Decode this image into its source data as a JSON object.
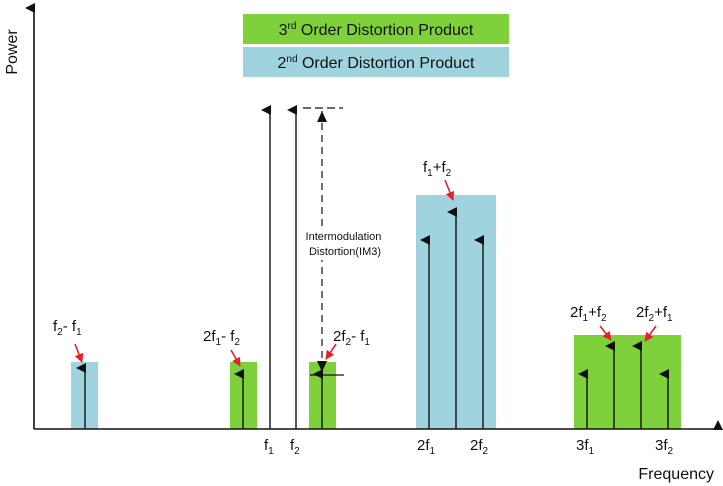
{
  "axes": {
    "y_label": "Power",
    "x_label": "Frequency"
  },
  "legend": {
    "third_order": {
      "base": "3",
      "sup": "rd",
      "text": " Order Distortion Product",
      "color": "#7ed13a"
    },
    "second_order": {
      "base": "2",
      "sup": "nd",
      "text": " Order Distortion Product",
      "color": "#9fd4df"
    }
  },
  "colors": {
    "second_order": "#9fd4df",
    "third_order": "#7ed13a",
    "arrow": "#111111",
    "pointer": "#e8202a"
  },
  "annotation": {
    "line1": "Intermodulation",
    "line2": "Distortion(IM3)"
  },
  "x_ticks": [
    {
      "base": "f",
      "sub": "1"
    },
    {
      "base": "f",
      "sub": "2"
    },
    {
      "base": "2f",
      "sub": "1"
    },
    {
      "base": "2f",
      "sub": "2"
    },
    {
      "base": "3f",
      "sub": "1"
    },
    {
      "base": "3f",
      "sub": "2"
    }
  ],
  "product_labels": {
    "diff_f2_f1": {
      "p1": "f",
      "s1": "2",
      "op": "- ",
      "p2": "f",
      "s2": "1"
    },
    "two_f1_minus_f2": {
      "p1": "2f",
      "s1": "1",
      "op": "- ",
      "p2": "f",
      "s2": "2"
    },
    "two_f2_minus_f1": {
      "p1": "2f",
      "s1": "2",
      "op": "- ",
      "p2": "f",
      "s2": "1"
    },
    "sum_f1_f2": {
      "p1": "f",
      "s1": "1",
      "op": "+",
      "p2": "f",
      "s2": "2"
    },
    "two_f1_plus_f2": {
      "p1": "2f",
      "s1": "1",
      "op": "+",
      "p2": "f",
      "s2": "2"
    },
    "two_f2_plus_f1": {
      "p1": "2f",
      "s1": "2",
      "op": "+",
      "p2": "f",
      "s2": "1"
    }
  }
}
